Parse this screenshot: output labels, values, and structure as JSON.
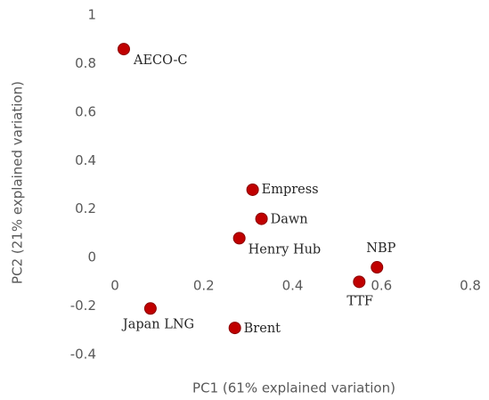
{
  "chart_data": {
    "type": "scatter",
    "x_label": "PC1 (61% explained variation)",
    "y_label": "PC2 (21% explained variation)",
    "labels": [
      "AECO-C",
      "Empress",
      "Dawn",
      "Henry Hub",
      "NBP",
      "TTF",
      "Japan LNG",
      "Brent"
    ],
    "x": [
      0.02,
      0.31,
      0.33,
      0.28,
      0.59,
      0.55,
      0.08,
      0.27
    ],
    "values": [
      0.86,
      0.28,
      0.16,
      0.08,
      -0.04,
      -0.1,
      -0.21,
      -0.29
    ],
    "color": "#c00000",
    "xlim": [
      0,
      0.8
    ],
    "xticks": [
      0,
      0.2,
      0.4,
      0.6,
      0.8
    ],
    "ylim": [
      -0.4,
      1
    ],
    "yticks": [
      -0.4,
      -0.2,
      0,
      0.2,
      0.4,
      0.6,
      0.8,
      1
    ],
    "grid": false
  }
}
